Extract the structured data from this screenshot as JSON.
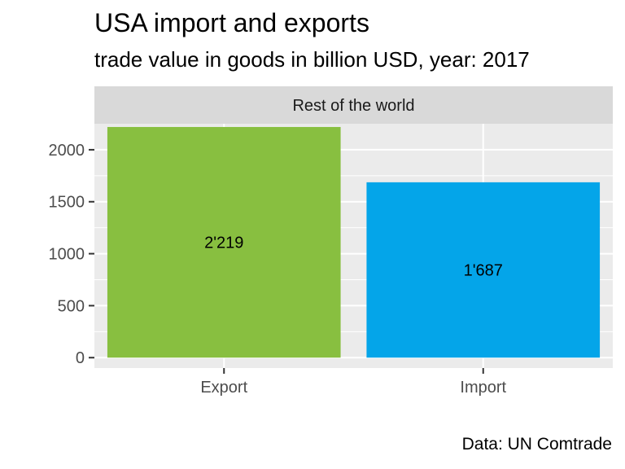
{
  "chart_data": {
    "type": "bar",
    "title": "USA import and exports",
    "subtitle": "trade value in goods in billion USD, year: 2017",
    "facet_label": "Rest of the world",
    "caption": "Data: UN Comtrade",
    "categories": [
      "Export",
      "Import"
    ],
    "values": [
      2219,
      1687
    ],
    "data_labels": [
      "2'219",
      "1'687"
    ],
    "bar_colors": [
      "#88BF40",
      "#04A5E9"
    ],
    "ylim": [
      -100,
      2250
    ],
    "y_ticks": [
      0,
      500,
      1000,
      1500,
      2000
    ],
    "y_tick_labels": [
      "0",
      "500",
      "1000",
      "1500",
      "2000"
    ],
    "xlabel": "",
    "ylabel": "",
    "grid": true,
    "legend": "none",
    "panel_color": "#EBEBEB",
    "strip_color": "#D9D9D9"
  }
}
